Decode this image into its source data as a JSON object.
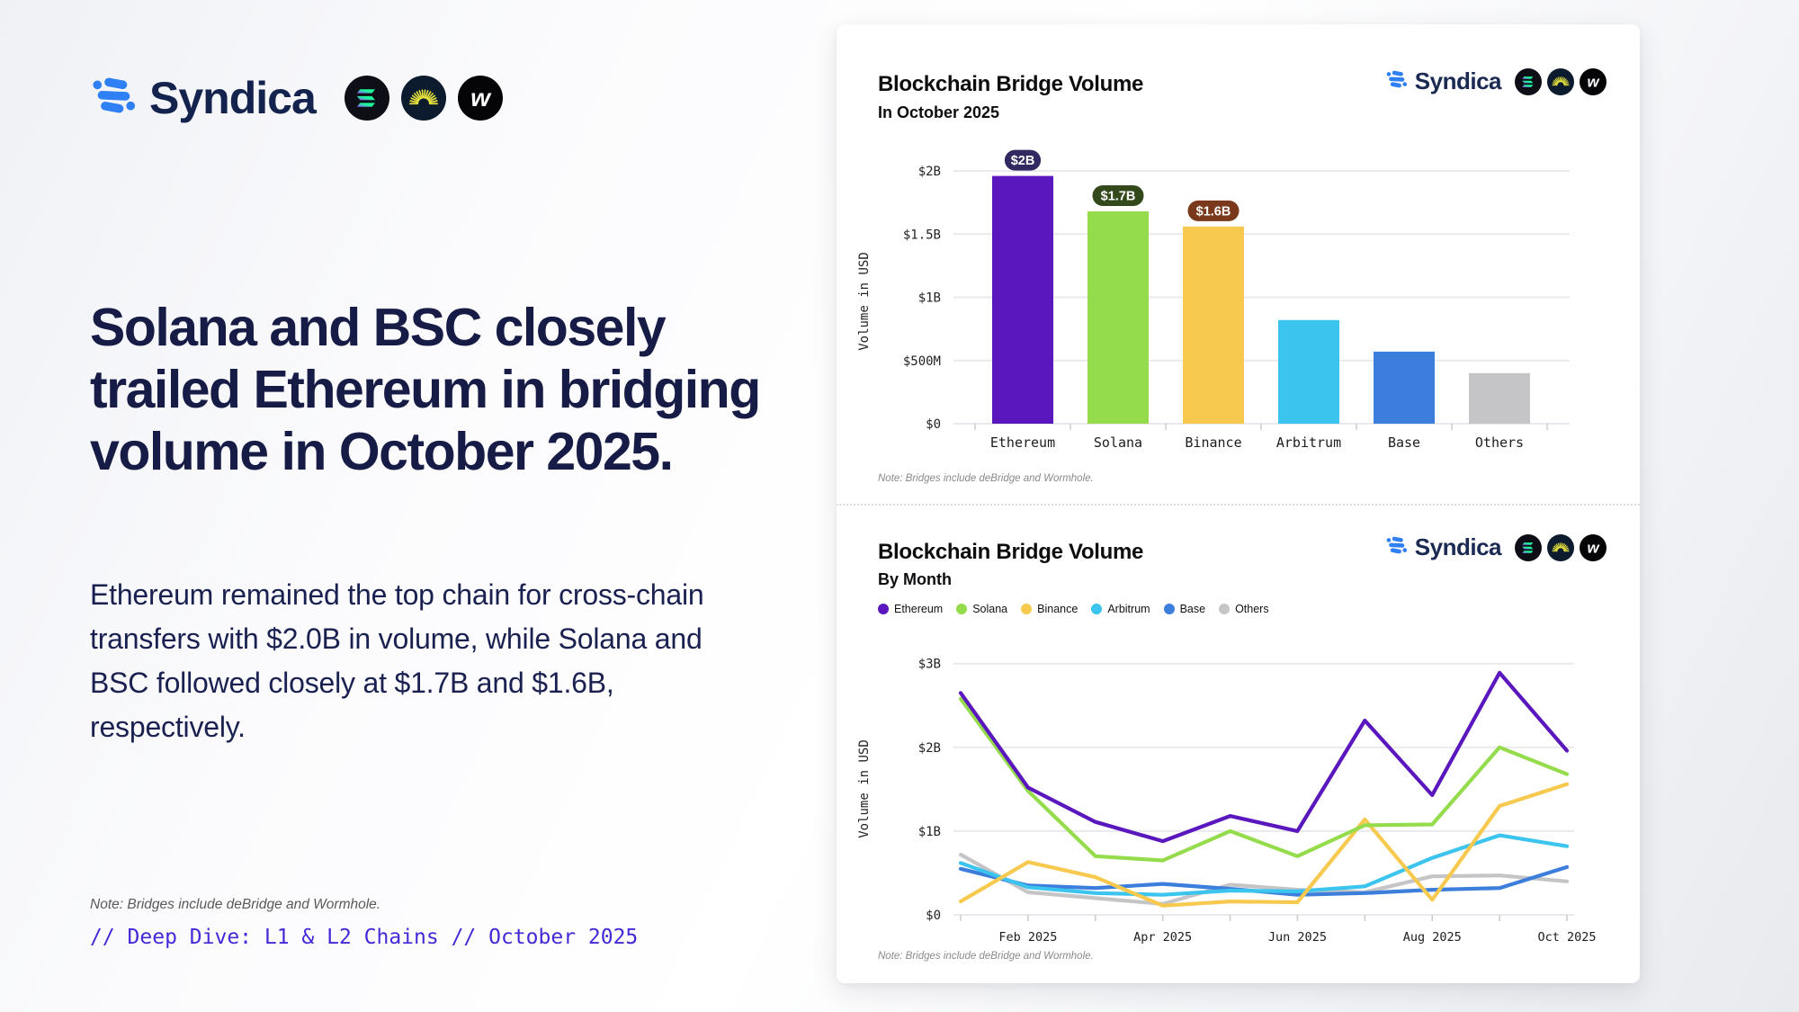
{
  "brand": {
    "name": "Syndica",
    "mark_color": "#2F7FF5",
    "wordmark_color": "#13234E",
    "chain_icons": [
      "solana-icon",
      "debridge-icon",
      "wormhole-icon"
    ]
  },
  "left_panel": {
    "headline": "Solana and BSC closely trailed Ethereum in bridging volume in October 2025.",
    "body": "Ethereum remained the top chain for cross-chain transfers with $2.0B in volume, while Solana and BSC followed closely at $1.7B and $1.6B, respectively.",
    "note": "Note: Bridges include deBridge and Wormhole.",
    "tagline": "// Deep Dive: L1 & L2 Chains // October 2025",
    "tagline_color": "#4429D6"
  },
  "chart_data": [
    {
      "type": "bar",
      "title": "Blockchain Bridge Volume",
      "subtitle": "In October 2025",
      "ylabel": "Volume in USD",
      "categories": [
        "Ethereum",
        "Solana",
        "Binance",
        "Arbitrum",
        "Base",
        "Others"
      ],
      "values_billions": [
        1.96,
        1.68,
        1.56,
        0.82,
        0.57,
        0.4
      ],
      "colors": [
        "#5A17BD",
        "#95DC4C",
        "#F7C94F",
        "#3AC4EE",
        "#3C7EDC",
        "#C5C5C8"
      ],
      "data_labels": [
        {
          "text": "$2B",
          "bg": "#322961"
        },
        {
          "text": "$1.7B",
          "bg": "#34491B"
        },
        {
          "text": "$1.6B",
          "bg": "#79391A"
        },
        null,
        null,
        null
      ],
      "yticks": [
        {
          "label": "$0",
          "v": 0
        },
        {
          "label": "$500M",
          "v": 0.5
        },
        {
          "label": "$1B",
          "v": 1
        },
        {
          "label": "$1.5B",
          "v": 1.5
        },
        {
          "label": "$2B",
          "v": 2
        }
      ],
      "ylim": [
        0,
        2.35
      ],
      "grid": true,
      "note": "Note: Bridges include deBridge and Wormhole."
    },
    {
      "type": "line",
      "title": "Blockchain Bridge Volume",
      "subtitle": "By Month",
      "ylabel": "Volume in USD",
      "x": [
        "Jan 2025",
        "Feb 2025",
        "Mar 2025",
        "Apr 2025",
        "May 2025",
        "Jun 2025",
        "Jul 2025",
        "Aug 2025",
        "Sep 2025",
        "Oct 2025"
      ],
      "x_labeled_ticks": [
        "Feb 2025",
        "Apr 2025",
        "Jun 2025",
        "Aug 2025",
        "Oct 2025"
      ],
      "series": [
        {
          "name": "Ethereum",
          "color": "#5A17BD",
          "values": [
            2.65,
            1.52,
            1.11,
            0.88,
            1.18,
            1.0,
            2.32,
            1.43,
            2.89,
            1.96
          ]
        },
        {
          "name": "Solana",
          "color": "#95DC4C",
          "values": [
            2.58,
            1.48,
            0.7,
            0.65,
            1.0,
            0.7,
            1.07,
            1.08,
            2.0,
            1.68
          ]
        },
        {
          "name": "Binance",
          "color": "#F7C94F",
          "values": [
            0.16,
            0.63,
            0.45,
            0.11,
            0.16,
            0.15,
            1.14,
            0.18,
            1.3,
            1.56
          ]
        },
        {
          "name": "Arbitrum",
          "color": "#3AC4EE",
          "values": [
            0.62,
            0.33,
            0.26,
            0.24,
            0.29,
            0.28,
            0.34,
            0.68,
            0.95,
            0.82
          ]
        },
        {
          "name": "Base",
          "color": "#3C7EDC",
          "values": [
            0.55,
            0.35,
            0.32,
            0.37,
            0.31,
            0.24,
            0.26,
            0.3,
            0.32,
            0.57
          ]
        },
        {
          "name": "Others",
          "color": "#C5C5C8",
          "values": [
            0.72,
            0.27,
            0.2,
            0.13,
            0.36,
            0.3,
            0.27,
            0.46,
            0.47,
            0.4
          ]
        }
      ],
      "yticks": [
        {
          "label": "$0",
          "v": 0
        },
        {
          "label": "$1B",
          "v": 1
        },
        {
          "label": "$2B",
          "v": 2
        },
        {
          "label": "$3B",
          "v": 3
        }
      ],
      "ylim": [
        0,
        3.1
      ],
      "grid": true,
      "legend_position": "top",
      "note": "Note: Bridges include deBridge and Wormhole."
    }
  ]
}
